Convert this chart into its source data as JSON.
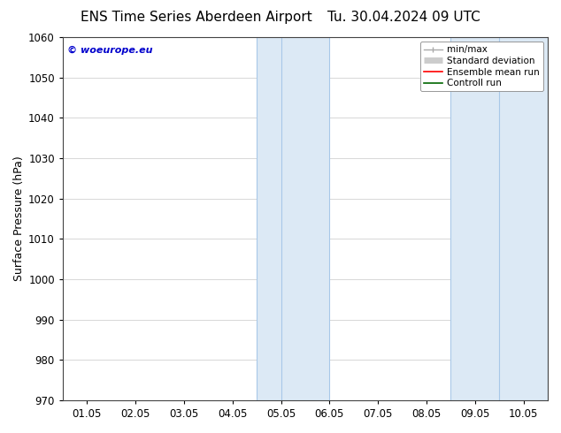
{
  "title_left": "ENS Time Series Aberdeen Airport",
  "title_right": "Tu. 30.04.2024 09 UTC",
  "ylabel": "Surface Pressure (hPa)",
  "ylim": [
    970,
    1060
  ],
  "yticks": [
    970,
    980,
    990,
    1000,
    1010,
    1020,
    1030,
    1040,
    1050,
    1060
  ],
  "xtick_labels": [
    "01.05",
    "02.05",
    "03.05",
    "04.05",
    "05.05",
    "06.05",
    "07.05",
    "08.05",
    "09.05",
    "10.05"
  ],
  "xtick_positions": [
    0,
    1,
    2,
    3,
    4,
    5,
    6,
    7,
    8,
    9
  ],
  "xlim": [
    0,
    9.5
  ],
  "shaded_bands": [
    {
      "x_start": 3.5,
      "x_end": 4.0,
      "inner_line": 3.75
    },
    {
      "x_start": 4.0,
      "x_end": 5.0,
      "inner_line": 4.5
    },
    {
      "x_start": 7.5,
      "x_end": 8.0,
      "inner_line": 7.75
    },
    {
      "x_start": 8.0,
      "x_end": 9.5,
      "inner_line": 8.5
    }
  ],
  "shaded_color": "#dce9f5",
  "shaded_edge_color": "#a8c8e8",
  "watermark_text": "© woeurope.eu",
  "watermark_color": "#0000cc",
  "background_color": "#ffffff",
  "grid_color": "#c8c8c8",
  "legend_items": [
    {
      "label": "min/max",
      "color": "#aaaaaa",
      "lw": 1.0,
      "style": "caps"
    },
    {
      "label": "Standard deviation",
      "color": "#cccccc",
      "lw": 5,
      "style": "thick"
    },
    {
      "label": "Ensemble mean run",
      "color": "#ff0000",
      "lw": 1.2,
      "style": "line"
    },
    {
      "label": "Controll run",
      "color": "#006600",
      "lw": 1.2,
      "style": "line"
    }
  ],
  "title_fontsize": 11,
  "tick_label_fontsize": 8.5,
  "ylabel_fontsize": 9,
  "legend_fontsize": 7.5,
  "watermark_fontsize": 8
}
